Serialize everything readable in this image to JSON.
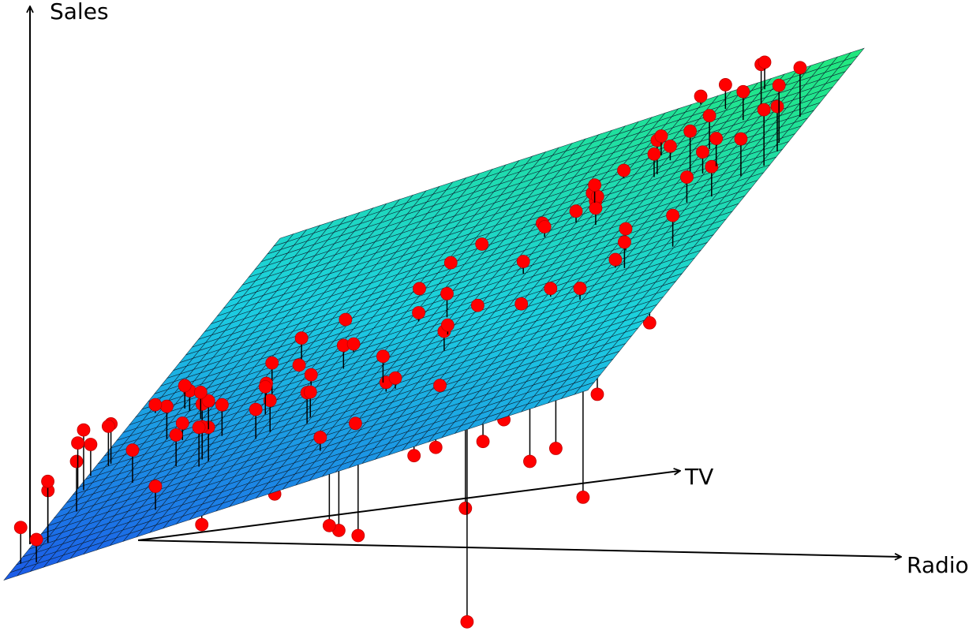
{
  "chart_data": {
    "type": "scatter3d",
    "x_label": "TV",
    "y_label": "Radio",
    "z_label": "Sales",
    "xlim": [
      0,
      300
    ],
    "ylim": [
      0,
      50
    ],
    "zlim": [
      0,
      27
    ],
    "color": "#ff0000",
    "plane_colors": [
      "#1c5ae8",
      "#1ccfe0",
      "#22e87c"
    ],
    "grid": true,
    "x": [
      230.1,
      44.5,
      17.2,
      151.5,
      180.8,
      8.7,
      57.5,
      120.2,
      8.6,
      199.8,
      66.1,
      214.7,
      23.8,
      97.5,
      204.1,
      195.4,
      67.8,
      281.4,
      69.2,
      147.3,
      218.4,
      237.4,
      13.2,
      228.3,
      62.3,
      262.9,
      142.9,
      240.1,
      248.8,
      70.6,
      292.9,
      112.9,
      97.2,
      265.6,
      95.7,
      290.7,
      266.9,
      74.7,
      43.1,
      228,
      202.5,
      177,
      293.6,
      206.9,
      25.1,
      175.1,
      89.7,
      239.9,
      227.2,
      66.9,
      199.8,
      100.4,
      216.4,
      182.6,
      262.7,
      198.9,
      7.3,
      136.2,
      210.8,
      210.7,
      53.5,
      261.3,
      239.3,
      102.7,
      131.1,
      69,
      31.5,
      139.3,
      237.4,
      216.8,
      199.1,
      109.8,
      26.8,
      129.4,
      213.4,
      16.9,
      27.5,
      120.5,
      5.4,
      116,
      76.4,
      239.8,
      75.3,
      68.4,
      213.5,
      193.2,
      76.3,
      110.7,
      88.3,
      109.8,
      134.3,
      28.6,
      217.7,
      250.9,
      107.4,
      163.3,
      197.6,
      184.9,
      289.7,
      135.2,
      222.4,
      296.4,
      280.2,
      187.9,
      238.2,
      137.9,
      25,
      90.4,
      13.1,
      255.4,
      225.8,
      241.7,
      175.7,
      209.6,
      78.2,
      75.1,
      139.2,
      76.4,
      125.7,
      19.4,
      141.3,
      18.8,
      224,
      123.1,
      229.5,
      87.2,
      7.8,
      80.2,
      220.3,
      59.6,
      0.7,
      265.2,
      8.4,
      219.8,
      36.9,
      48.3,
      25.6,
      273.7,
      43,
      184.9,
      73.4,
      193.7,
      220.5,
      104.6,
      96.2,
      140.3,
      240.1,
      243.2
    ],
    "y": [
      37.8,
      39.3,
      45.9,
      41.3,
      10.8,
      48.9,
      32.8,
      19.6,
      2.1,
      2.6,
      5.8,
      24,
      35.1,
      7.6,
      32.9,
      47.7,
      36.6,
      39.6,
      20.5,
      23.9,
      27.7,
      5.1,
      15.9,
      16.9,
      12.6,
      3.5,
      29.3,
      16.7,
      27.1,
      16,
      28.3,
      17.4,
      1.5,
      20,
      1.4,
      4.1,
      43.8,
      49.4,
      26.7,
      37.7,
      22.3,
      33.4,
      27.7,
      8.4,
      25.7,
      22.5,
      9.9,
      41.5,
      15.8,
      11.7,
      3.1,
      9.6,
      41.7,
      46.2,
      28.8,
      49.4,
      28.1,
      19.2,
      49.6,
      29.5,
      2,
      42.7,
      15.5,
      29.6,
      42.8,
      9.3,
      24.6,
      14.5,
      27.5,
      43.9,
      30.6,
      14.3,
      33,
      5.7,
      24.6,
      43.7,
      1.6,
      28.5,
      29.9,
      7.7,
      26.7,
      4.1,
      20.3,
      44.5,
      43,
      18.4,
      27.5,
      40.6,
      25.5,
      47.8,
      4.9,
      1.5,
      33.5,
      36.5,
      14,
      31.6,
      3.5,
      21,
      42.3,
      41.7,
      4.3,
      36.3,
      10.1,
      17.2,
      34.3,
      46.4,
      11,
      0.3,
      0.4,
      26.9,
      8.2,
      38,
      15.4,
      20.6,
      46.8,
      35,
      14.3,
      0.8,
      36.9,
      16,
      26.8,
      21.7,
      2.4,
      34.6,
      32.3,
      11.8,
      38.9,
      0,
      49,
      12,
      39.6,
      2.9,
      27.2,
      33.5,
      38.6,
      47,
      39,
      28.9,
      25.9,
      43.9,
      17,
      35.4,
      33.2,
      5.7,
      14.8,
      1.9,
      7.3,
      49
    ],
    "z": [
      22.1,
      10.4,
      9.3,
      18.5,
      12.9,
      7.2,
      11.8,
      13.2,
      4.8,
      10.6,
      8.6,
      17.4,
      9.2,
      9.7,
      19,
      22.4,
      12.5,
      24.4,
      11.3,
      14.6,
      18,
      12.5,
      5.6,
      15.5,
      9.7,
      12,
      15,
      15.9,
      18.9,
      10.5,
      21.4,
      11.9,
      9.6,
      17.4,
      9.5,
      12.8,
      25.4,
      14.7,
      10.1,
      21.5,
      16.6,
      17.1,
      20.7,
      12.9,
      8.5,
      14.9,
      10.6,
      23.2,
      14.8,
      9.7,
      11.4,
      10.7,
      22.6,
      21.2,
      20.2,
      23.7,
      5.5,
      13.2,
      23.8,
      18.4,
      8.1,
      24.2,
      15.7,
      14,
      18,
      9.3,
      9.5,
      13.4,
      18.9,
      22.3,
      18.3,
      12.4,
      8.8,
      11,
      17,
      8.7,
      6.9,
      14.2,
      5.3,
      11,
      11.8,
      12.3,
      11.3,
      13.6,
      21.7,
      15.2,
      12,
      16,
      12.9,
      16.7,
      11.2,
      7.3,
      19.4,
      22.2,
      11.5,
      16.9,
      11.7,
      15.5,
      25.4,
      17.2,
      11.7,
      23.8,
      14.8,
      14.7,
      20.7,
      19.2,
      7.2,
      8.7,
      5.3,
      19.8,
      13.4,
      21.8,
      14.1,
      15.9,
      14.6,
      12.6,
      12.2,
      9.4,
      15.9,
      6.6,
      15.5,
      7,
      11.6,
      15.2,
      19.7,
      10.6,
      6.6,
      8.8,
      24.7,
      9.7,
      1.6,
      12.7,
      5.7,
      19.6,
      10.8,
      11.6,
      9.5,
      20.8,
      9.6,
      20.7,
      10.9,
      19.2,
      20.1,
      10.4,
      11.4,
      10.3,
      13.2,
      25.4
    ]
  }
}
